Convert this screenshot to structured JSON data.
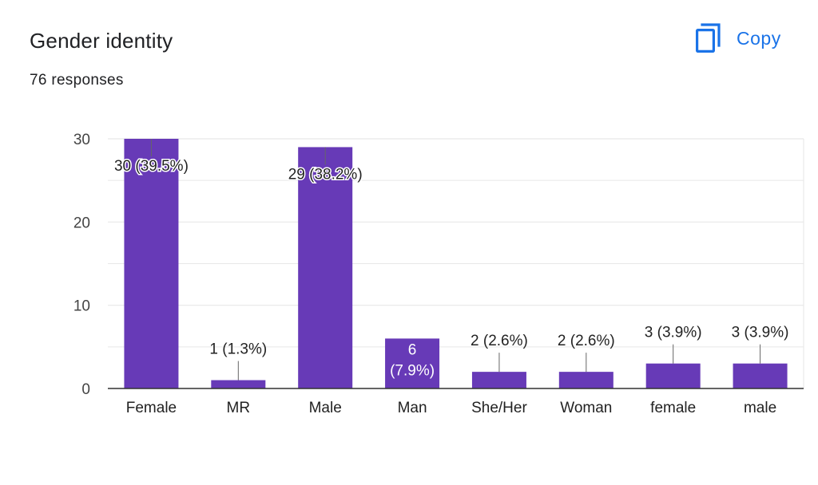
{
  "header": {
    "title": "Gender identity",
    "responses": "76 responses",
    "copy_label": "Copy"
  },
  "icons": {
    "copy": "copy-icon"
  },
  "colors": {
    "bar": "#673ab7",
    "accent": "#1a73e8",
    "grid": "#e8e8e8"
  },
  "chart_data": {
    "type": "bar",
    "title": "Gender identity",
    "xlabel": "",
    "ylabel": "",
    "categories": [
      "Female",
      "MR",
      "Male",
      "Man",
      "She/Her",
      "Woman",
      "female",
      "male"
    ],
    "values": [
      30,
      1,
      29,
      6,
      2,
      2,
      3,
      3
    ],
    "data_labels": [
      "30 (39.5%)",
      "1 (1.3%)",
      "29 (38.2%)",
      "6 (7.9%)",
      "2 (2.6%)",
      "2 (2.6%)",
      "3 (3.9%)",
      "3 (3.9%)"
    ],
    "ylim": [
      0,
      30
    ],
    "yticks": [
      0,
      10,
      20,
      30
    ],
    "grid": true,
    "legend": "none"
  }
}
